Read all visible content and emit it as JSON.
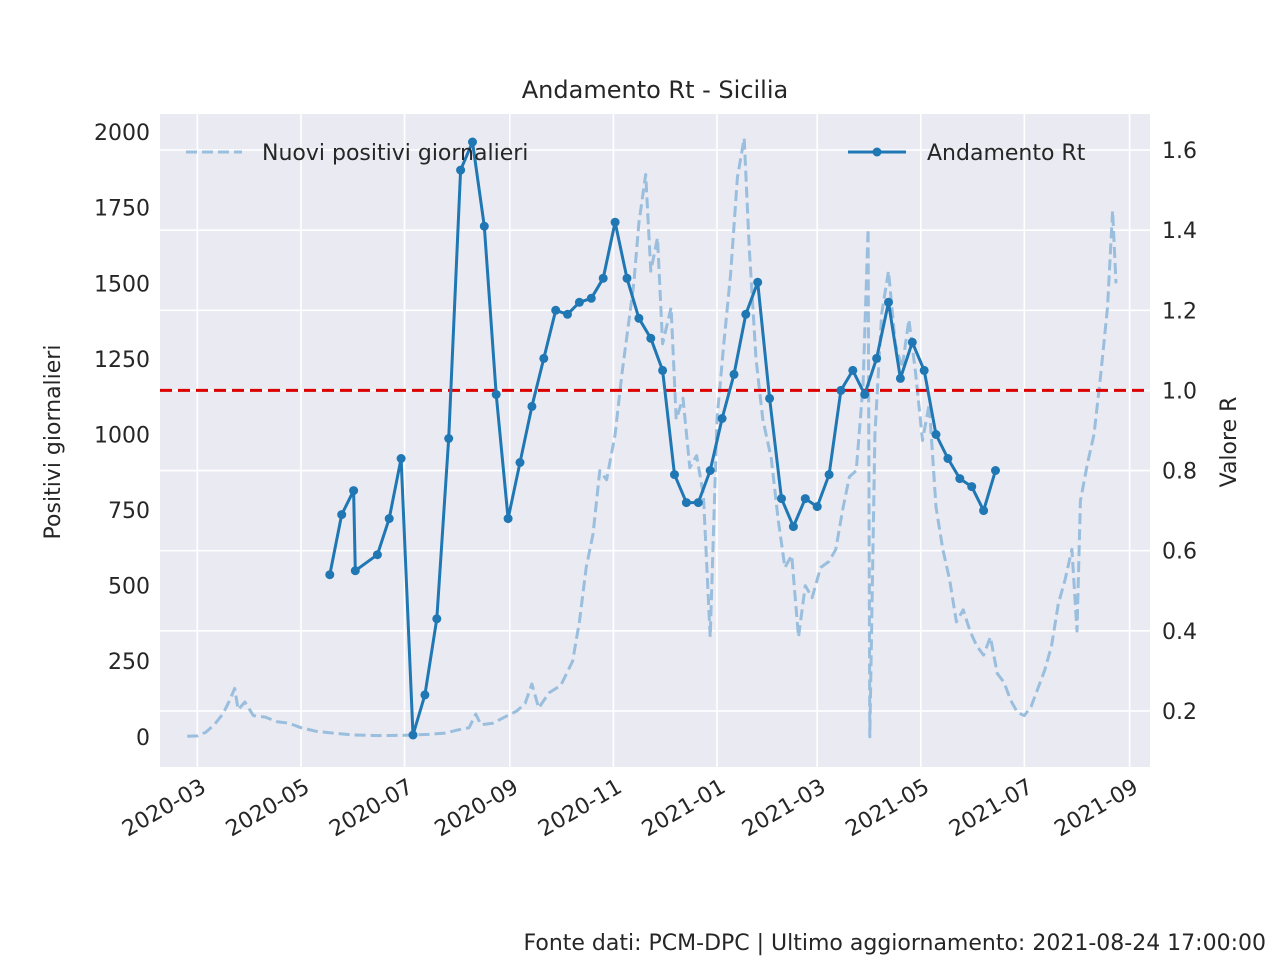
{
  "chart_data": {
    "type": "line",
    "title": "Andamento Rt - Sicilia",
    "ylabel": "Positivi giornalieri",
    "y2label": "Valore R",
    "xlim": [
      "2020-02-08",
      "2021-09-13"
    ],
    "ylim": [
      -100,
      2060
    ],
    "y2lim": [
      0.06,
      1.69
    ],
    "x_ticks": [
      "2020-03",
      "2020-05",
      "2020-07",
      "2020-09",
      "2020-11",
      "2021-01",
      "2021-03",
      "2021-05",
      "2021-07",
      "2021-09"
    ],
    "y_ticks": [
      "0",
      "250",
      "500",
      "750",
      "1000",
      "1250",
      "1500",
      "1750",
      "2000"
    ],
    "y2_ticks": [
      "0.2",
      "0.4",
      "0.6",
      "0.8",
      "1.0",
      "1.2",
      "1.4",
      "1.6"
    ],
    "threshold": {
      "y2": 1.0,
      "color": "#dd0000",
      "style": "dashed"
    },
    "grid": true,
    "legend": [
      {
        "label": "Nuovi positivi giornalieri",
        "position": "top-left"
      },
      {
        "label": "Andamento Rt",
        "position": "top-right"
      }
    ],
    "series": [
      {
        "name": "Nuovi positivi giornalieri",
        "axis": "left",
        "color": "#9abedd",
        "style": "dashed",
        "points": [
          [
            "2020-02-24",
            2
          ],
          [
            "2020-03-01",
            3
          ],
          [
            "2020-03-06",
            15
          ],
          [
            "2020-03-11",
            40
          ],
          [
            "2020-03-16",
            75
          ],
          [
            "2020-03-20",
            120
          ],
          [
            "2020-03-23",
            160
          ],
          [
            "2020-03-25",
            90
          ],
          [
            "2020-03-29",
            115
          ],
          [
            "2020-04-03",
            70
          ],
          [
            "2020-04-10",
            65
          ],
          [
            "2020-04-17",
            50
          ],
          [
            "2020-04-24",
            45
          ],
          [
            "2020-05-01",
            30
          ],
          [
            "2020-05-10",
            18
          ],
          [
            "2020-05-20",
            12
          ],
          [
            "2020-06-01",
            6
          ],
          [
            "2020-06-15",
            4
          ],
          [
            "2020-07-01",
            5
          ],
          [
            "2020-07-15",
            8
          ],
          [
            "2020-07-25",
            12
          ],
          [
            "2020-08-01",
            22
          ],
          [
            "2020-08-08",
            30
          ],
          [
            "2020-08-12",
            75
          ],
          [
            "2020-08-15",
            40
          ],
          [
            "2020-08-22",
            45
          ],
          [
            "2020-08-29",
            65
          ],
          [
            "2020-09-05",
            85
          ],
          [
            "2020-09-10",
            110
          ],
          [
            "2020-09-14",
            175
          ],
          [
            "2020-09-18",
            95
          ],
          [
            "2020-09-24",
            145
          ],
          [
            "2020-10-01",
            170
          ],
          [
            "2020-10-08",
            250
          ],
          [
            "2020-10-12",
            380
          ],
          [
            "2020-10-16",
            560
          ],
          [
            "2020-10-20",
            670
          ],
          [
            "2020-10-24",
            880
          ],
          [
            "2020-10-28",
            850
          ],
          [
            "2020-11-02",
            1000
          ],
          [
            "2020-11-06",
            1200
          ],
          [
            "2020-11-10",
            1370
          ],
          [
            "2020-11-13",
            1500
          ],
          [
            "2020-11-16",
            1700
          ],
          [
            "2020-11-20",
            1860
          ],
          [
            "2020-11-23",
            1540
          ],
          [
            "2020-11-27",
            1650
          ],
          [
            "2020-11-30",
            1300
          ],
          [
            "2020-12-05",
            1420
          ],
          [
            "2020-12-08",
            1050
          ],
          [
            "2020-12-12",
            1120
          ],
          [
            "2020-12-16",
            890
          ],
          [
            "2020-12-20",
            930
          ],
          [
            "2020-12-24",
            800
          ],
          [
            "2020-12-28",
            330
          ],
          [
            "2021-01-01",
            1050
          ],
          [
            "2021-01-05",
            1300
          ],
          [
            "2021-01-09",
            1530
          ],
          [
            "2021-01-13",
            1850
          ],
          [
            "2021-01-17",
            1980
          ],
          [
            "2021-01-20",
            1620
          ],
          [
            "2021-01-24",
            1250
          ],
          [
            "2021-01-28",
            1050
          ],
          [
            "2021-02-02",
            920
          ],
          [
            "2021-02-06",
            720
          ],
          [
            "2021-02-10",
            560
          ],
          [
            "2021-02-14",
            600
          ],
          [
            "2021-02-18",
            330
          ],
          [
            "2021-02-22",
            500
          ],
          [
            "2021-02-26",
            460
          ],
          [
            "2021-03-03",
            560
          ],
          [
            "2021-03-08",
            580
          ],
          [
            "2021-03-12",
            620
          ],
          [
            "2021-03-16",
            750
          ],
          [
            "2021-03-20",
            860
          ],
          [
            "2021-03-24",
            880
          ],
          [
            "2021-03-28",
            1160
          ],
          [
            "2021-03-31",
            1680
          ],
          [
            "2021-04-01",
            0
          ],
          [
            "2021-04-04",
            1000
          ],
          [
            "2021-04-08",
            1400
          ],
          [
            "2021-04-12",
            1540
          ],
          [
            "2021-04-16",
            1300
          ],
          [
            "2021-04-20",
            1220
          ],
          [
            "2021-04-24",
            1380
          ],
          [
            "2021-04-28",
            1200
          ],
          [
            "2021-05-02",
            980
          ],
          [
            "2021-05-06",
            1100
          ],
          [
            "2021-05-10",
            760
          ],
          [
            "2021-05-14",
            620
          ],
          [
            "2021-05-18",
            520
          ],
          [
            "2021-05-22",
            380
          ],
          [
            "2021-05-26",
            420
          ],
          [
            "2021-05-30",
            350
          ],
          [
            "2021-06-03",
            300
          ],
          [
            "2021-06-07",
            270
          ],
          [
            "2021-06-11",
            330
          ],
          [
            "2021-06-15",
            210
          ],
          [
            "2021-06-19",
            180
          ],
          [
            "2021-06-23",
            120
          ],
          [
            "2021-06-27",
            80
          ],
          [
            "2021-07-01",
            70
          ],
          [
            "2021-07-05",
            100
          ],
          [
            "2021-07-09",
            160
          ],
          [
            "2021-07-13",
            220
          ],
          [
            "2021-07-17",
            300
          ],
          [
            "2021-07-21",
            440
          ],
          [
            "2021-07-25",
            520
          ],
          [
            "2021-07-29",
            620
          ],
          [
            "2021-08-01",
            350
          ],
          [
            "2021-08-03",
            780
          ],
          [
            "2021-08-07",
            900
          ],
          [
            "2021-08-11",
            1000
          ],
          [
            "2021-08-15",
            1200
          ],
          [
            "2021-08-19",
            1420
          ],
          [
            "2021-08-22",
            1740
          ],
          [
            "2021-08-24",
            1500
          ]
        ]
      },
      {
        "name": "Andamento Rt",
        "axis": "right",
        "color": "#1f77b4",
        "style": "solid",
        "marker": "circle",
        "segments": [
          [
            [
              "2020-05-18",
              0.54
            ],
            [
              "2020-05-25",
              0.69
            ],
            [
              "2020-06-01",
              0.75
            ],
            [
              "2020-06-02",
              0.55
            ],
            [
              "2020-06-15",
              0.59
            ],
            [
              "2020-06-22",
              0.68
            ],
            [
              "2020-06-29",
              0.83
            ],
            [
              "2020-07-06",
              0.14
            ],
            [
              "2020-07-13",
              0.24
            ],
            [
              "2020-07-20",
              0.43
            ],
            [
              "2020-07-27",
              0.88
            ],
            [
              "2020-08-03",
              1.55
            ],
            [
              "2020-08-10",
              1.62
            ],
            [
              "2020-08-17",
              1.41
            ],
            [
              "2020-08-24",
              0.99
            ],
            [
              "2020-08-31",
              0.68
            ],
            [
              "2020-09-07",
              0.82
            ],
            [
              "2020-09-14",
              0.96
            ],
            [
              "2020-09-21",
              1.08
            ],
            [
              "2020-09-28",
              1.2
            ],
            [
              "2020-10-05",
              1.19
            ],
            [
              "2020-10-12",
              1.22
            ],
            [
              "2020-10-19",
              1.23
            ],
            [
              "2020-10-26",
              1.28
            ],
            [
              "2020-11-02",
              1.42
            ],
            [
              "2020-11-09",
              1.28
            ],
            [
              "2020-11-16",
              1.18
            ],
            [
              "2020-11-23",
              1.13
            ],
            [
              "2020-11-30",
              1.05
            ],
            [
              "2020-12-07",
              0.79
            ],
            [
              "2020-12-14",
              0.72
            ],
            [
              "2020-12-21",
              0.72
            ],
            [
              "2020-12-28",
              0.8
            ],
            [
              "2021-01-04",
              0.93
            ],
            [
              "2021-01-11",
              1.04
            ],
            [
              "2021-01-18",
              1.19
            ],
            [
              "2021-01-25",
              1.27
            ],
            [
              "2021-02-01",
              0.98
            ],
            [
              "2021-02-08",
              0.73
            ],
            [
              "2021-02-15",
              0.66
            ],
            [
              "2021-02-22",
              0.73
            ],
            [
              "2021-03-01",
              0.71
            ],
            [
              "2021-03-08",
              0.79
            ],
            [
              "2021-03-15",
              1.0
            ],
            [
              "2021-03-22",
              1.05
            ],
            [
              "2021-03-29",
              0.99
            ],
            [
              "2021-04-05",
              1.08
            ],
            [
              "2021-04-12",
              1.22
            ],
            [
              "2021-04-19",
              1.03
            ],
            [
              "2021-04-26",
              1.12
            ],
            [
              "2021-05-03",
              1.05
            ],
            [
              "2021-05-10",
              0.89
            ],
            [
              "2021-05-17",
              0.83
            ],
            [
              "2021-05-24",
              0.78
            ],
            [
              "2021-05-31",
              0.76
            ],
            [
              "2021-06-07",
              0.7
            ],
            [
              "2021-06-14",
              0.8
            ]
          ]
        ]
      }
    ]
  },
  "footer": {
    "source_text": "Fonte dati: PCM-DPC | Ultimo aggiornamento: 2021-08-24 17:00:00"
  }
}
